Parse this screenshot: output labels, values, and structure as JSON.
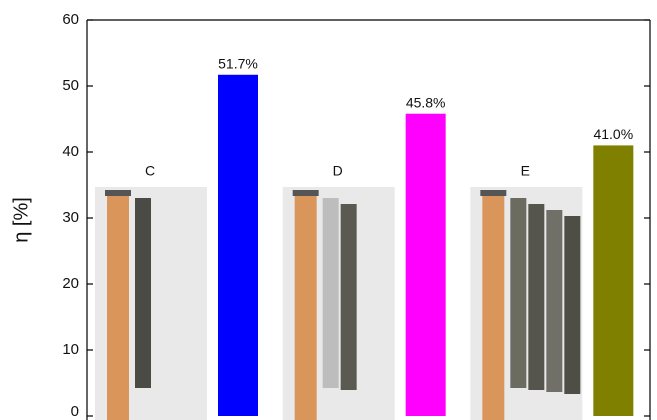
{
  "chart_data": {
    "type": "bar",
    "y_label": "η [%]",
    "categories": [
      "C",
      "D",
      "E"
    ],
    "values": [
      51.7,
      45.8,
      41.0
    ],
    "value_labels": [
      "51.7%",
      "45.8%",
      "41.0%"
    ],
    "colors": [
      "#0000ff",
      "#ff00ff",
      "#808000"
    ],
    "ylim": [
      0,
      60
    ],
    "yticks": [
      0,
      10,
      20,
      30,
      40,
      50,
      60
    ]
  }
}
